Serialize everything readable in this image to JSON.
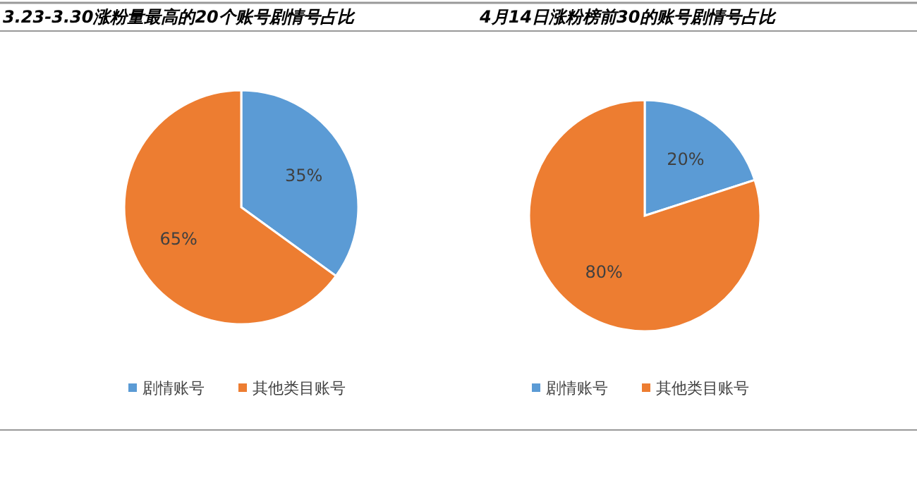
{
  "chart_data": [
    {
      "type": "pie",
      "title": "3.23-3.30涨粉量最高的20个账号剧情号占比",
      "categories": [
        "剧情账号",
        "其他类目账号"
      ],
      "values": [
        35,
        65
      ],
      "colors": [
        "#5b9bd5",
        "#ed7d31"
      ],
      "value_labels": [
        "35%",
        "65%"
      ],
      "legend": "bottom"
    },
    {
      "type": "pie",
      "title": "4月14日涨粉榜前30的账号剧情号占比",
      "categories": [
        "剧情账号",
        "其他类目账号"
      ],
      "values": [
        20,
        80
      ],
      "colors": [
        "#5b9bd5",
        "#ed7d31"
      ],
      "value_labels": [
        "20%",
        "80%"
      ],
      "legend": "bottom"
    }
  ]
}
